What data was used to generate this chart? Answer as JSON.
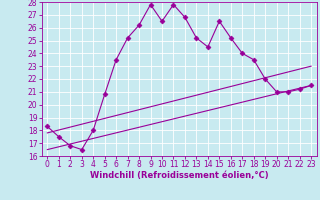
{
  "xlabel": "Windchill (Refroidissement éolien,°C)",
  "bg_color": "#c8eaf0",
  "line_color": "#990099",
  "grid_color": "#ffffff",
  "xlim": [
    -0.5,
    23.5
  ],
  "ylim": [
    16,
    28
  ],
  "xticks": [
    0,
    1,
    2,
    3,
    4,
    5,
    6,
    7,
    8,
    9,
    10,
    11,
    12,
    13,
    14,
    15,
    16,
    17,
    18,
    19,
    20,
    21,
    22,
    23
  ],
  "yticks": [
    16,
    17,
    18,
    19,
    20,
    21,
    22,
    23,
    24,
    25,
    26,
    27,
    28
  ],
  "series1_x": [
    0,
    1,
    2,
    3,
    4,
    5,
    6,
    7,
    8,
    9,
    10,
    11,
    12,
    13,
    14,
    15,
    16,
    17,
    18,
    19,
    20,
    21,
    22,
    23
  ],
  "series1_y": [
    18.3,
    17.5,
    16.8,
    16.5,
    18.0,
    20.8,
    23.5,
    25.2,
    26.2,
    27.8,
    26.5,
    27.8,
    26.8,
    25.2,
    24.5,
    26.5,
    25.2,
    24.0,
    23.5,
    22.0,
    21.0,
    21.0,
    21.2,
    21.5
  ],
  "series2_x": [
    0,
    23
  ],
  "series2_y": [
    17.8,
    23.0
  ],
  "series3_x": [
    0,
    23
  ],
  "series3_y": [
    16.5,
    21.5
  ],
  "marker": "D",
  "marker_size": 2.5,
  "linewidth": 0.8,
  "tick_label_size": 5.5,
  "xlabel_size": 6.0
}
